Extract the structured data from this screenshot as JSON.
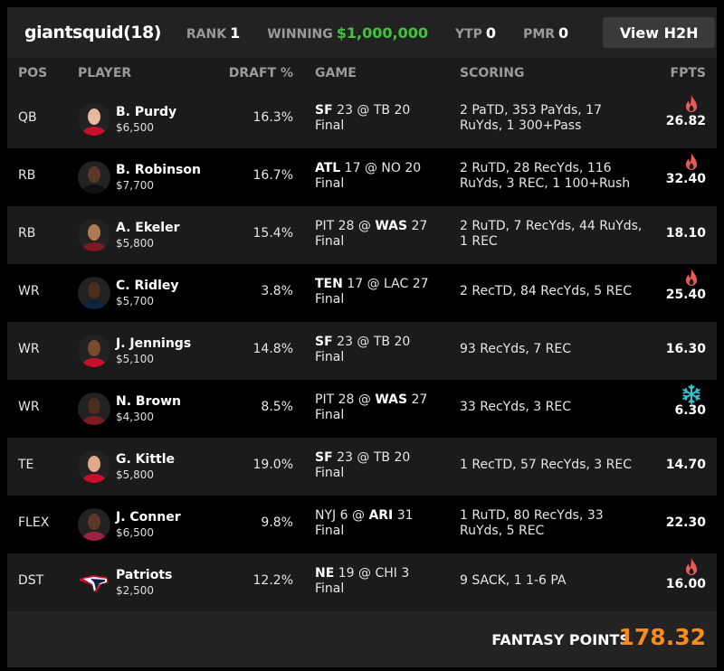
{
  "header": {
    "username": "giantsquid",
    "entries": "(18)",
    "rank_label": "RANK",
    "rank": "1",
    "winning_label": "WINNING",
    "winning": "$1,000,000",
    "ytp_label": "YTP",
    "ytp": "0",
    "pmr_label": "PMR",
    "pmr": "0",
    "h2h_label": "View H2H"
  },
  "columns": {
    "pos": "POS",
    "player": "PLAYER",
    "draft": "DRAFT %",
    "game": "GAME",
    "scoring": "SCORING",
    "fpts": "FPTS"
  },
  "colors": {
    "accent": "#f68b1f",
    "winning": "#3fc53a",
    "hot": "#ef5a5a",
    "cold": "#2bc4d8"
  },
  "rows": [
    {
      "pos": "QB",
      "name": "B. Purdy",
      "salary": "$6,500",
      "draft": "16.3%",
      "away": "SF",
      "away_score": "23",
      "home": "TB",
      "home_score": "20",
      "bold": "away",
      "status": "Final",
      "scoring": "2 PaTD, 353 PaYds, 17 RuYds, 1 300+Pass",
      "fpts": "26.82",
      "icon": "fire-icon",
      "jersey": "#c8102e",
      "skin": "#e8b89a"
    },
    {
      "pos": "RB",
      "name": "B. Robinson",
      "salary": "$7,700",
      "draft": "16.7%",
      "away": "ATL",
      "away_score": "17",
      "home": "NO",
      "home_score": "20",
      "bold": "away",
      "status": "Final",
      "scoring": "2 RuTD, 28 RecYds, 116 RuYds, 3 REC, 1 100+Rush",
      "fpts": "32.40",
      "icon": "fire-icon",
      "jersey": "#111111",
      "skin": "#5a3825"
    },
    {
      "pos": "RB",
      "name": "A. Ekeler",
      "salary": "$5,800",
      "draft": "15.4%",
      "away": "PIT",
      "away_score": "28",
      "home": "WAS",
      "home_score": "27",
      "bold": "home",
      "status": "Final",
      "scoring": "2 RuTD, 7 RecYds, 44 RuYds, 1 REC",
      "fpts": "18.10",
      "icon": "",
      "jersey": "#7a1b26",
      "skin": "#b07a55"
    },
    {
      "pos": "WR",
      "name": "C. Ridley",
      "salary": "$5,700",
      "draft": "3.8%",
      "away": "TEN",
      "away_score": "17",
      "home": "LAC",
      "home_score": "27",
      "bold": "away",
      "status": "Final",
      "scoring": "2 RecTD, 84 RecYds, 5 REC",
      "fpts": "25.40",
      "icon": "fire-icon",
      "jersey": "#0c2340",
      "skin": "#4a2e1e"
    },
    {
      "pos": "WR",
      "name": "J. Jennings",
      "salary": "$5,100",
      "draft": "14.8%",
      "away": "SF",
      "away_score": "23",
      "home": "TB",
      "home_score": "20",
      "bold": "away",
      "status": "Final",
      "scoring": "93 RecYds, 7 REC",
      "fpts": "16.30",
      "icon": "",
      "jersey": "#c8102e",
      "skin": "#7a4a30"
    },
    {
      "pos": "WR",
      "name": "N. Brown",
      "salary": "$4,300",
      "draft": "8.5%",
      "away": "PIT",
      "away_score": "28",
      "home": "WAS",
      "home_score": "27",
      "bold": "home",
      "status": "Final",
      "scoring": "33 RecYds, 3 REC",
      "fpts": "6.30",
      "icon": "snowflake-icon",
      "jersey": "#7a1b26",
      "skin": "#4a2e1e"
    },
    {
      "pos": "TE",
      "name": "G. Kittle",
      "salary": "$5,800",
      "draft": "19.0%",
      "away": "SF",
      "away_score": "23",
      "home": "TB",
      "home_score": "20",
      "bold": "away",
      "status": "Final",
      "scoring": "1 RecTD, 57 RecYds, 3 REC",
      "fpts": "14.70",
      "icon": "",
      "jersey": "#c8102e",
      "skin": "#e0a888"
    },
    {
      "pos": "FLEX",
      "name": "J. Conner",
      "salary": "$6,500",
      "draft": "9.8%",
      "away": "NYJ",
      "away_score": "6",
      "home": "ARI",
      "home_score": "31",
      "bold": "home",
      "status": "Final",
      "scoring": "1 RuTD, 80 RecYds, 33 RuYds, 5 REC",
      "fpts": "22.30",
      "icon": "",
      "jersey": "#97233f",
      "skin": "#5a3825"
    },
    {
      "pos": "DST",
      "name": "Patriots",
      "salary": "$2,500",
      "draft": "12.2%",
      "away": "NE",
      "away_score": "19",
      "home": "CHI",
      "home_score": "3",
      "bold": "away",
      "status": "Final",
      "scoring": "9 SACK, 1 1-6 PA",
      "fpts": "16.00",
      "icon": "fire-icon",
      "logo": "patriots-logo"
    }
  ],
  "footer": {
    "label": "FANTASY POINTS",
    "total": "178.32"
  }
}
